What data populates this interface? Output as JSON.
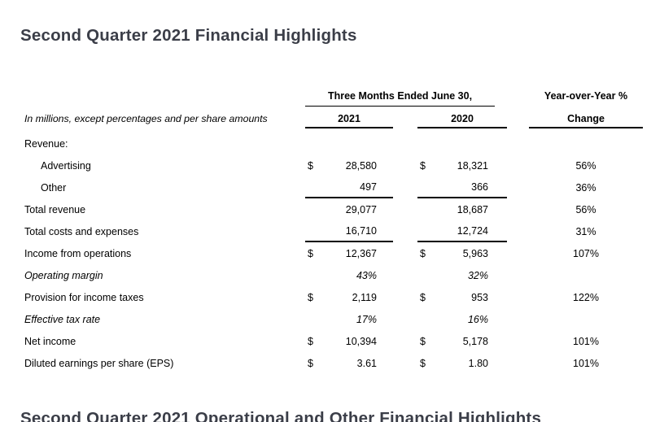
{
  "page": {
    "title": "Second Quarter 2021 Financial Highlights",
    "next_section_title": "Second Quarter 2021 Operational and Other Financial Highlights"
  },
  "colors": {
    "background": "#ffffff",
    "heading_text": "#3b3e48",
    "table_text": "#000000",
    "rule_lines": "#000000"
  },
  "table": {
    "note": "In millions, except percentages and per share amounts",
    "period_header": "Three Months Ended June 30,",
    "col_2021": "2021",
    "col_2020": "2020",
    "yoy_header_line1": "Year-over-Year %",
    "yoy_header_line2": "Change",
    "currency_symbol": "$",
    "rows": [
      {
        "label": "Revenue:",
        "indent": false,
        "italic": false,
        "dollar": false,
        "v2021": "",
        "v2020": "",
        "change": "",
        "underline": false
      },
      {
        "label": "Advertising",
        "indent": true,
        "italic": false,
        "dollar": true,
        "v2021": "28,580",
        "v2020": "18,321",
        "change": "56%",
        "underline": false
      },
      {
        "label": "Other",
        "indent": true,
        "italic": false,
        "dollar": false,
        "v2021": "497",
        "v2020": "366",
        "change": "36%",
        "underline": true
      },
      {
        "label": "Total revenue",
        "indent": false,
        "italic": false,
        "dollar": false,
        "v2021": "29,077",
        "v2020": "18,687",
        "change": "56%",
        "underline": false
      },
      {
        "label": "Total costs and expenses",
        "indent": false,
        "italic": false,
        "dollar": false,
        "v2021": "16,710",
        "v2020": "12,724",
        "change": "31%",
        "underline": true
      },
      {
        "label": "Income from operations",
        "indent": false,
        "italic": false,
        "dollar": true,
        "v2021": "12,367",
        "v2020": "5,963",
        "change": "107%",
        "underline": false
      },
      {
        "label": "Operating margin",
        "indent": false,
        "italic": true,
        "dollar": false,
        "v2021": "43%",
        "v2020": "32%",
        "change": "",
        "underline": false
      },
      {
        "label": "Provision for income taxes",
        "indent": false,
        "italic": false,
        "dollar": true,
        "v2021": "2,119",
        "v2020": "953",
        "change": "122%",
        "underline": false
      },
      {
        "label": "Effective tax rate",
        "indent": false,
        "italic": true,
        "dollar": false,
        "v2021": "17%",
        "v2020": "16%",
        "change": "",
        "underline": false
      },
      {
        "label": "Net income",
        "indent": false,
        "italic": false,
        "dollar": true,
        "v2021": "10,394",
        "v2020": "5,178",
        "change": "101%",
        "underline": false
      },
      {
        "label": "Diluted earnings per share (EPS)",
        "indent": false,
        "italic": false,
        "dollar": true,
        "v2021": "3.61",
        "v2020": "1.80",
        "change": "101%",
        "underline": false
      }
    ]
  }
}
